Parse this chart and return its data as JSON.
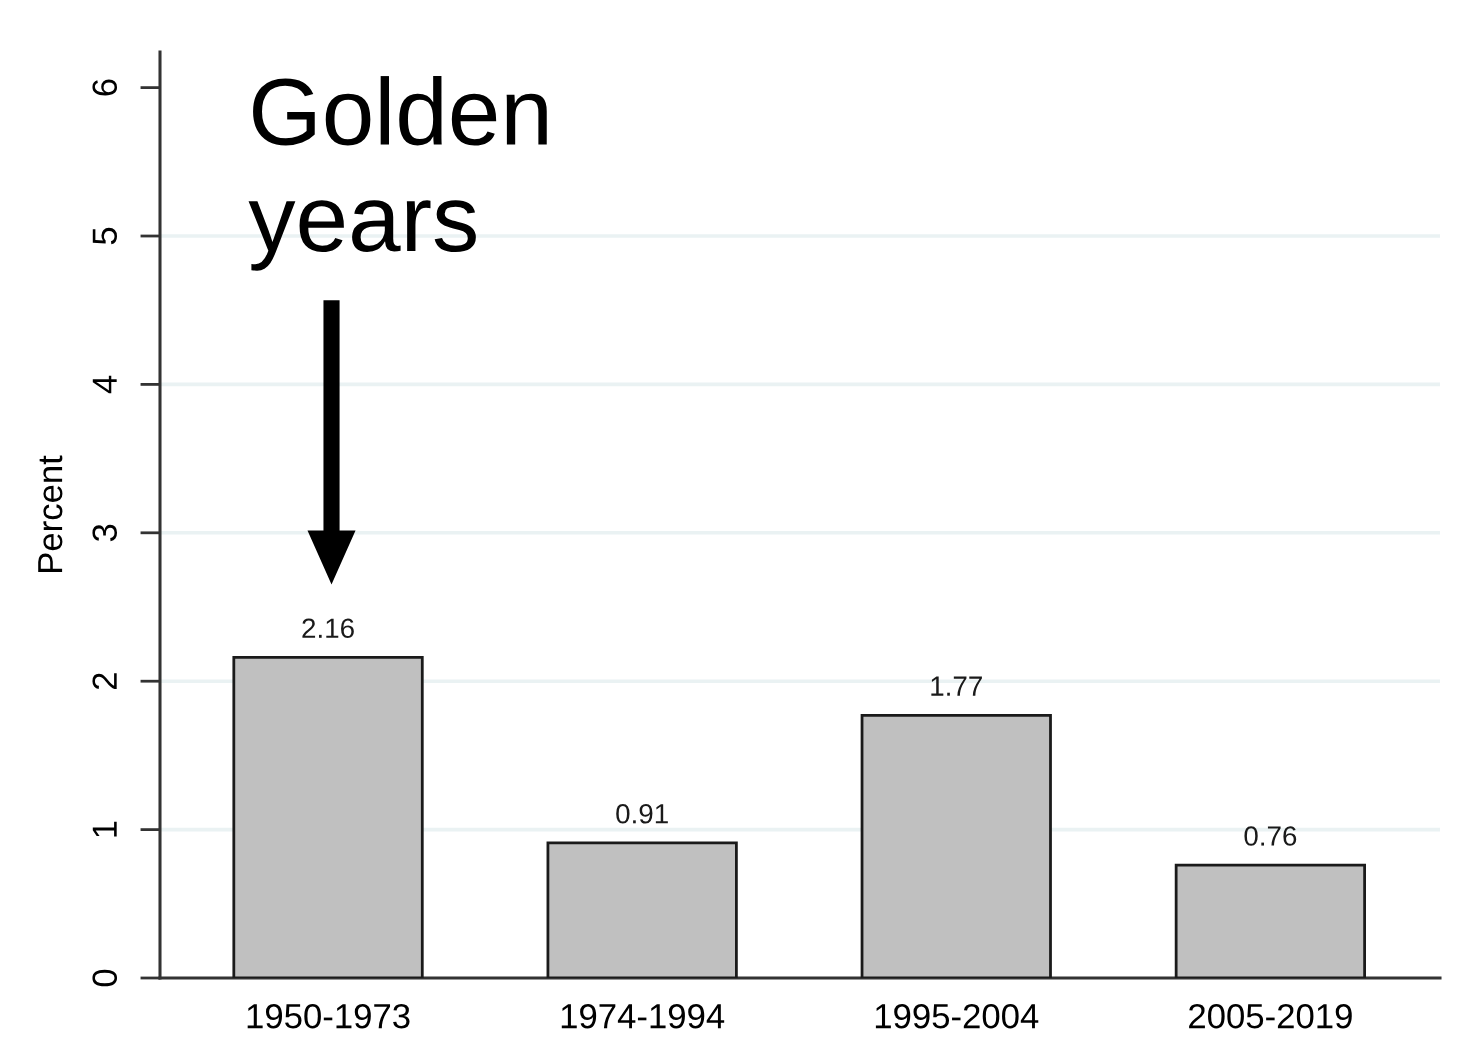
{
  "chart_data": {
    "type": "bar",
    "ylabel": "Percent",
    "categories": [
      "1950-1973",
      "1974-1994",
      "1995-2004",
      "2005-2019"
    ],
    "values": [
      2.16,
      0.91,
      1.77,
      0.76
    ],
    "color": "#c0c0c0",
    "ylim": [
      0,
      6.24
    ],
    "yticks": [
      0,
      1,
      2,
      3,
      4,
      5,
      6
    ],
    "grid": "y",
    "data_labels": true,
    "annotations": [
      "Golden\nyears"
    ]
  }
}
